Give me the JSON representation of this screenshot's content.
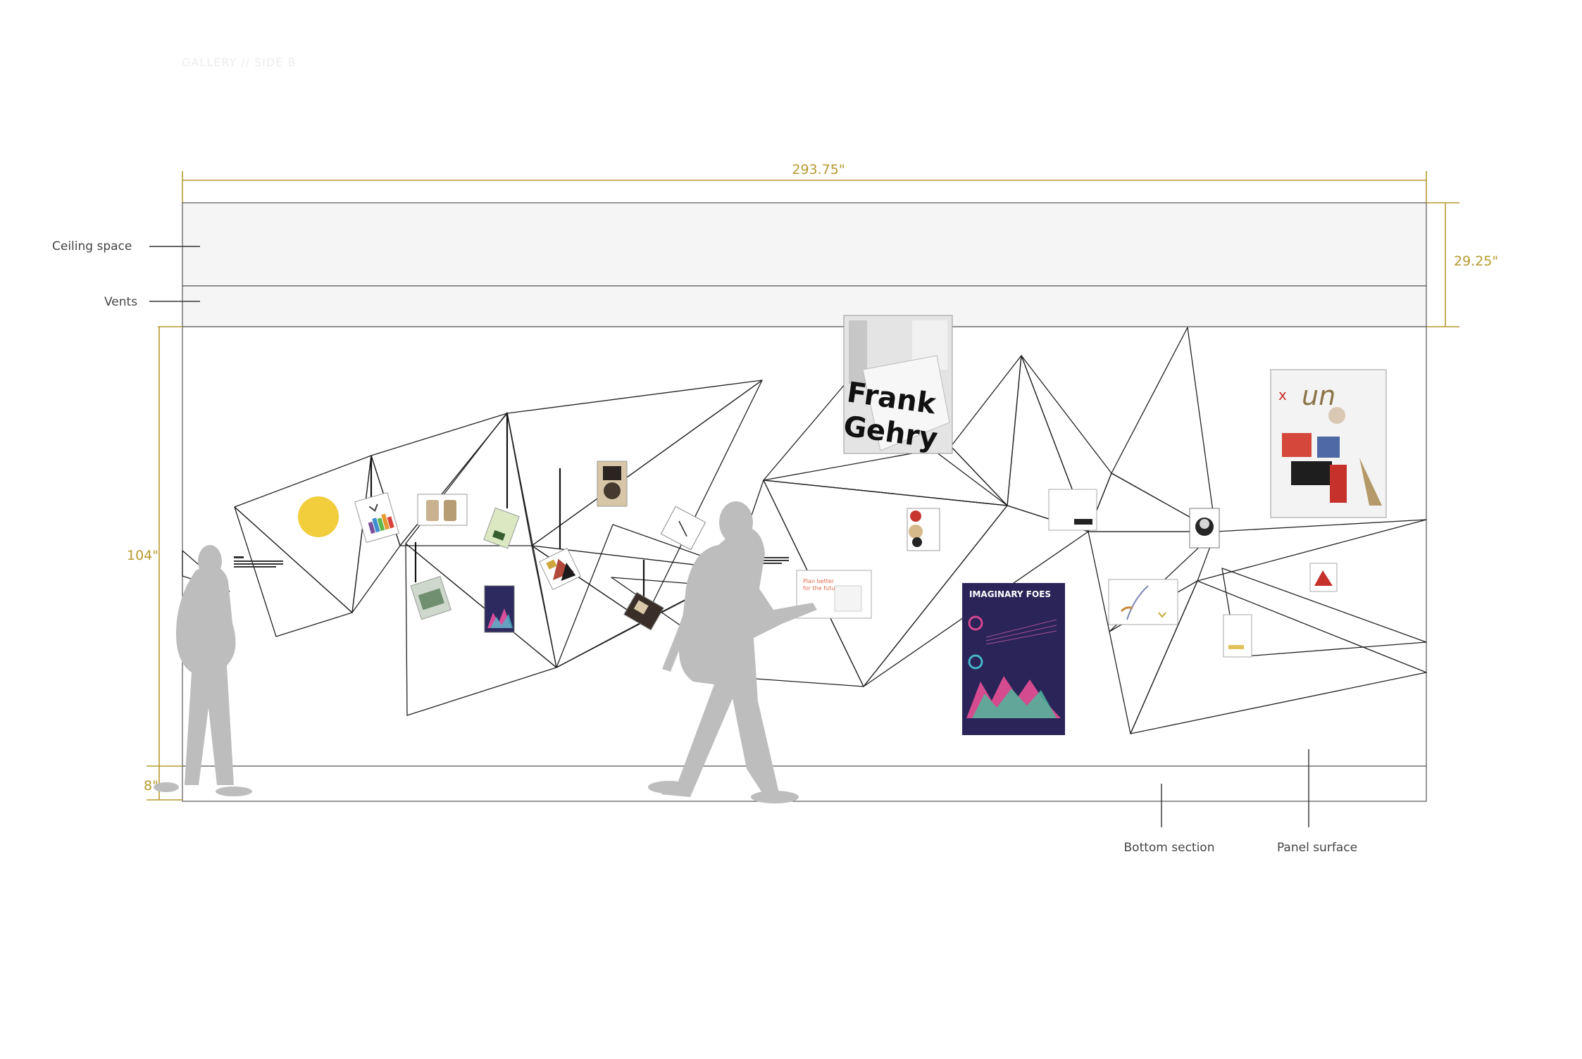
{
  "page_title": "GALLERY // SIDE B",
  "dimensions": {
    "width": "293.75\"",
    "top_height": "29.25\"",
    "wall_height": "104\"",
    "base_height": "8\""
  },
  "labels": {
    "ceiling": "Ceiling space",
    "vents": "Vents",
    "bottom_section": "Bottom section",
    "panel_surface": "Panel surface"
  },
  "artworks": {
    "frank_gehry": {
      "line1": "Frank",
      "line2": "Gehry"
    },
    "imaginary_foes": {
      "title": "IMAGINARY FOES"
    },
    "plan_card": {
      "line1": "Plan better",
      "line2": "for the future"
    },
    "type_poster": {
      "word1": "un",
      "word2": "x"
    }
  },
  "colors": {
    "dimension_gold": "#b59a2e",
    "panel_grey": "#f5f5f5",
    "silhouette": "#bdbdbd",
    "sun_yellow": "#f2cd3c",
    "poster_navy": "#2a2458"
  }
}
